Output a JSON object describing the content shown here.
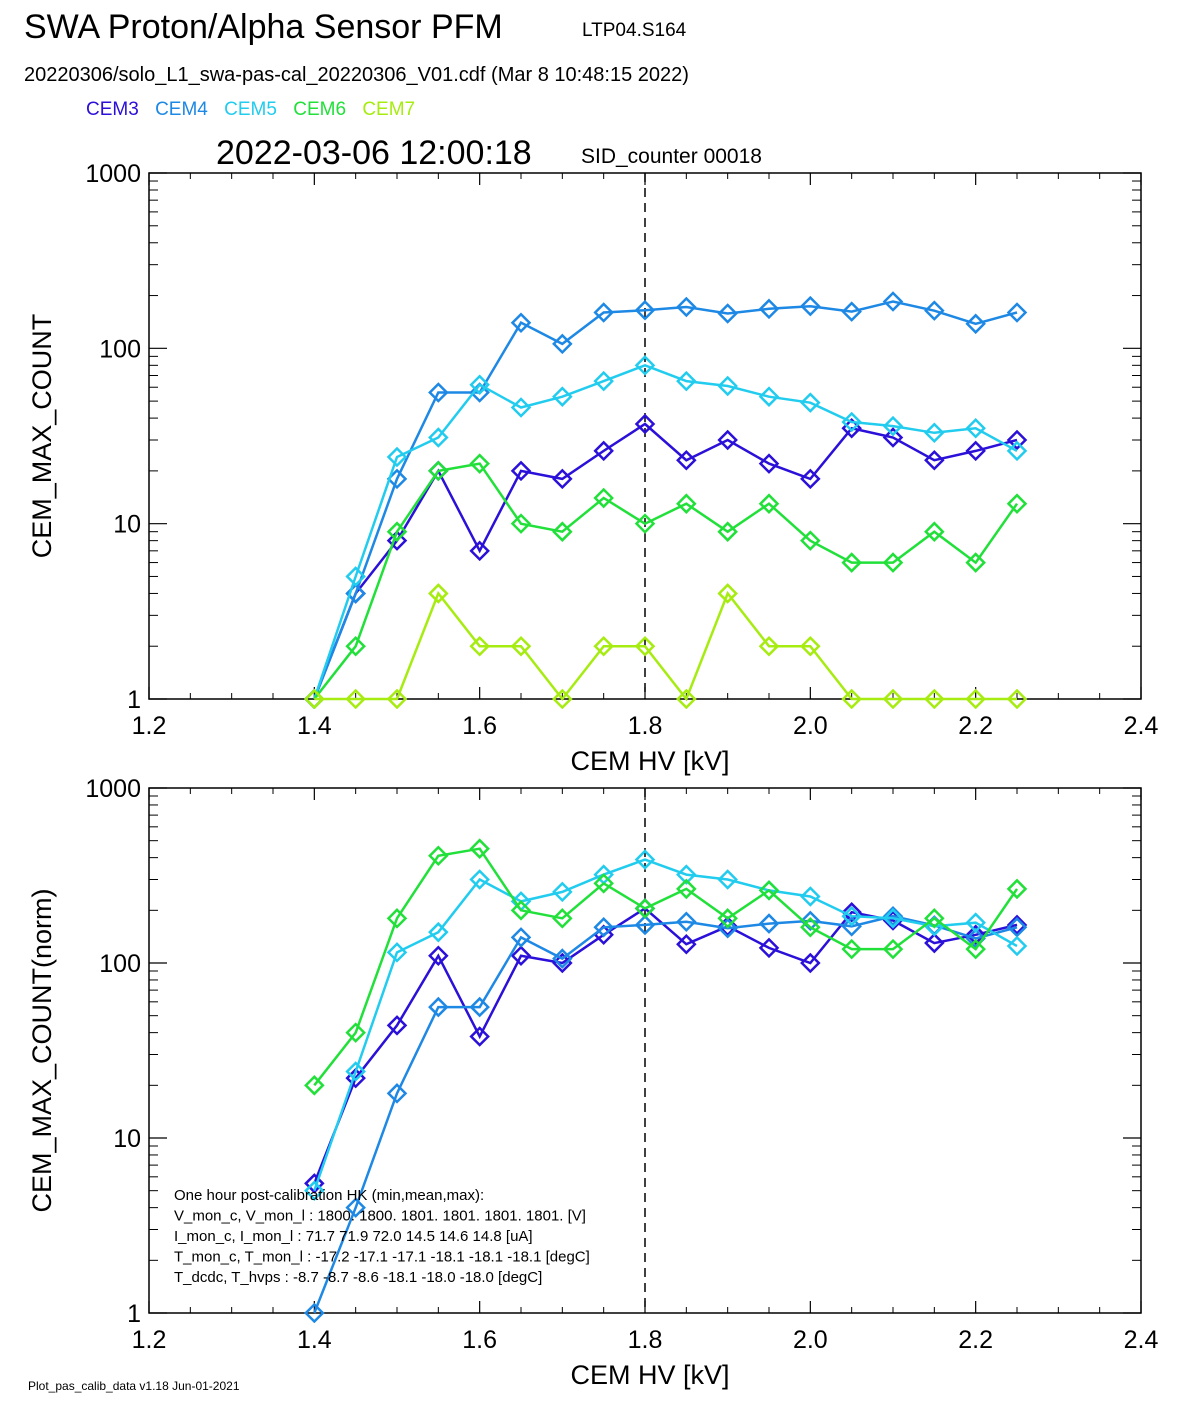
{
  "header": {
    "title": "SWA Proton/Alpha Sensor PFM",
    "subtitle": "LTP04.S164",
    "filename": "20220306/solo_L1_swa-pas-cal_20220306_V01.cdf  (Mar  8 10:48:15 2022)",
    "timestamp": "2022-03-06 12:00:18",
    "sid": "SID_counter 00018"
  },
  "legend": [
    {
      "label": "CEM3",
      "color": "#2a10d8"
    },
    {
      "label": "CEM4",
      "color": "#1e88e5"
    },
    {
      "label": "CEM5",
      "color": "#22ccee"
    },
    {
      "label": "CEM6",
      "color": "#22e03a"
    },
    {
      "label": "CEM7",
      "color": "#a6ec10"
    }
  ],
  "footer": "Plot_pas_calib_data v1.18 Jun-01-2021",
  "hk_note": [
    "One hour post-calibration HK (min,mean,max):",
    "V_mon_c, V_mon_l :  1800.  1800.  1801.      1801.  1801.  1801. [V]",
    "I_mon_c,  I_mon_l :    71.7   71.9   72.0         14.5   14.6  14.8  [uA]",
    "T_mon_c, T_mon_l :  -17.2  -17.1  -17.1        -18.1  -18.1  -18.1  [degC]",
    "T_dcdc,    T_hvps :     -8.7   -8.7   -8.6         -18.1  -18.0  -18.0  [degC]"
  ],
  "chart_data": [
    {
      "type": "line",
      "xlabel": "CEM HV [kV]",
      "ylabel": "CEM_MAX_COUNT",
      "xlim": [
        1.2,
        2.4
      ],
      "ylim": [
        1,
        1000
      ],
      "yscale": "log",
      "xticks": [
        "1.2",
        "1.4",
        "1.6",
        "1.8",
        "2.0",
        "2.2",
        "2.4"
      ],
      "yticks": [
        "1",
        "10",
        "100",
        "1000"
      ],
      "vline": 1.8,
      "x": [
        1.4,
        1.45,
        1.5,
        1.55,
        1.6,
        1.65,
        1.7,
        1.75,
        1.8,
        1.85,
        1.9,
        1.95,
        2.0,
        2.05,
        2.1,
        2.15,
        2.2,
        2.25
      ],
      "series": [
        {
          "name": "CEM3",
          "color": "#2a10d8",
          "values": [
            1,
            4,
            8,
            20,
            7,
            20,
            18,
            26,
            37,
            23,
            30,
            22,
            18,
            35,
            31,
            23,
            26,
            30
          ]
        },
        {
          "name": "CEM4",
          "color": "#1e88e5",
          "values": [
            1,
            4,
            18,
            56,
            56,
            140,
            106,
            160,
            165,
            172,
            158,
            168,
            174,
            162,
            185,
            164,
            138,
            160
          ]
        },
        {
          "name": "CEM5",
          "color": "#22ccee",
          "values": [
            1,
            5,
            24,
            31,
            62,
            46,
            53,
            65,
            80,
            65,
            61,
            53,
            49,
            38,
            36,
            33,
            35,
            26
          ]
        },
        {
          "name": "CEM6",
          "color": "#22e03a",
          "values": [
            1,
            2,
            9,
            20,
            22,
            10,
            9,
            14,
            10,
            13,
            9,
            13,
            8,
            6,
            6,
            9,
            6,
            13
          ]
        },
        {
          "name": "CEM7",
          "color": "#a6ec10",
          "values": [
            1,
            1,
            1,
            4,
            2,
            2,
            1,
            2,
            2,
            1,
            4,
            2,
            2,
            1,
            1,
            1,
            1,
            1
          ]
        }
      ]
    },
    {
      "type": "line",
      "xlabel": "CEM HV [kV]",
      "ylabel": "CEM_MAX_COUNT(norm)",
      "xlim": [
        1.2,
        2.4
      ],
      "ylim": [
        1,
        1000
      ],
      "yscale": "log",
      "xticks": [
        "1.2",
        "1.4",
        "1.6",
        "1.8",
        "2.0",
        "2.2",
        "2.4"
      ],
      "yticks": [
        "1",
        "10",
        "100",
        "1000"
      ],
      "vline": 1.8,
      "x": [
        1.4,
        1.45,
        1.5,
        1.55,
        1.6,
        1.65,
        1.7,
        1.75,
        1.8,
        1.85,
        1.9,
        1.95,
        2.0,
        2.05,
        2.1,
        2.15,
        2.2,
        2.25
      ],
      "series": [
        {
          "name": "CEM3",
          "color": "#2a10d8",
          "values": [
            5.5,
            22,
            44,
            110,
            38,
            110,
            100,
            145,
            205,
            128,
            162,
            122,
            100,
            195,
            175,
            130,
            145,
            165
          ]
        },
        {
          "name": "CEM4",
          "color": "#1e88e5",
          "values": [
            1,
            4,
            18,
            56,
            56,
            140,
            106,
            160,
            165,
            172,
            158,
            168,
            174,
            162,
            185,
            164,
            138,
            160
          ]
        },
        {
          "name": "CEM5",
          "color": "#22ccee",
          "values": [
            5,
            24,
            115,
            150,
            300,
            225,
            255,
            320,
            390,
            320,
            300,
            260,
            240,
            185,
            180,
            162,
            170,
            125
          ]
        },
        {
          "name": "CEM6",
          "color": "#22e03a",
          "values": [
            20,
            40,
            180,
            410,
            450,
            200,
            180,
            285,
            205,
            265,
            180,
            260,
            160,
            120,
            120,
            180,
            120,
            265
          ]
        }
      ]
    }
  ]
}
